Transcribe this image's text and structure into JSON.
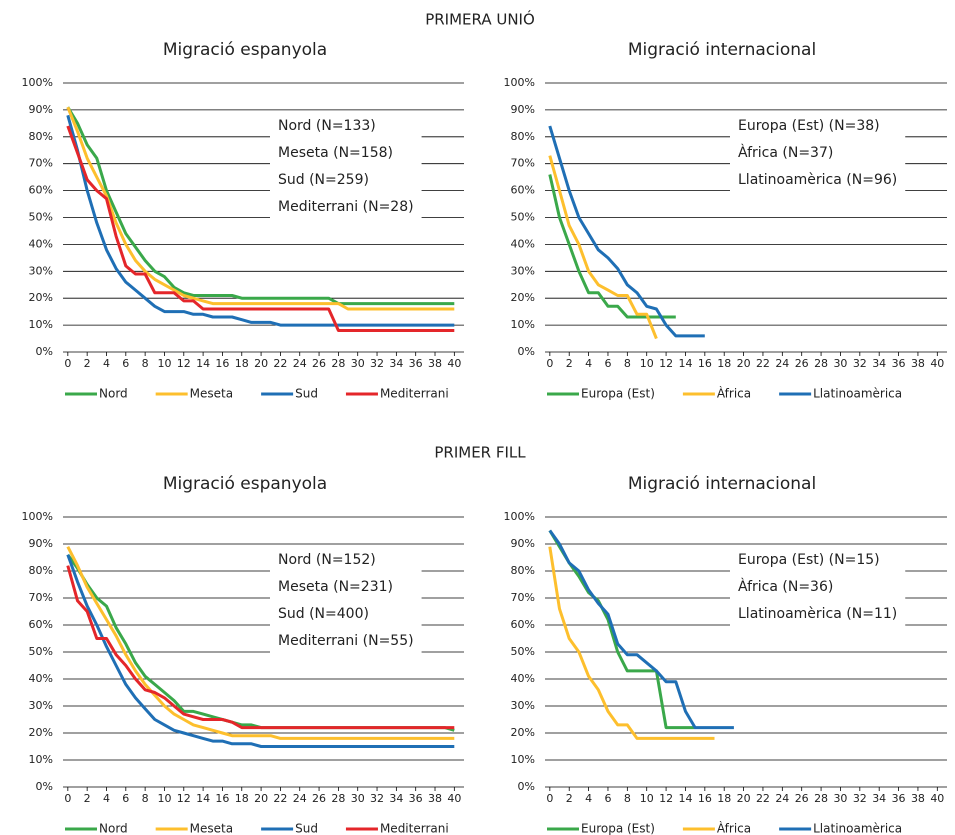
{
  "sections": [
    "PRIMERA UNIÓ",
    "PRIMER FILL"
  ],
  "chart_data": [
    {
      "type": "line",
      "section": 0,
      "title": "Migració espanyola",
      "annotations": [
        "Nord (N=133)",
        "Meseta (N=158)",
        "Sud (N=259)",
        "Mediterrani (N=28)"
      ],
      "x": [
        0,
        1,
        2,
        3,
        4,
        5,
        6,
        7,
        8,
        9,
        10,
        11,
        12,
        13,
        14,
        15,
        16,
        17,
        18,
        19,
        20,
        21,
        22,
        23,
        24,
        25,
        26,
        27,
        28,
        29,
        30,
        31,
        32,
        33,
        34,
        35,
        36,
        37,
        38,
        39,
        40
      ],
      "xlim": [
        -0.5,
        41
      ],
      "xticks": [
        0,
        2,
        4,
        6,
        8,
        10,
        12,
        14,
        16,
        18,
        20,
        22,
        24,
        26,
        28,
        30,
        32,
        34,
        36,
        38,
        40
      ],
      "ylim": [
        0,
        100
      ],
      "yticks": [
        {
          "value": 0,
          "label": "0%"
        },
        {
          "value": 10,
          "label": "10%"
        },
        {
          "value": 20,
          "label": "20%"
        },
        {
          "value": 30,
          "label": "30%"
        },
        {
          "value": 40,
          "label": "40%"
        },
        {
          "value": 50,
          "label": "50%"
        },
        {
          "value": 60,
          "label": "60%"
        },
        {
          "value": 70,
          "label": "70%"
        },
        {
          "value": 80,
          "label": "80%"
        },
        {
          "value": 90,
          "label": "90%"
        },
        {
          "value": 100,
          "label": "100%"
        }
      ],
      "grid": true,
      "series": [
        {
          "name": "Nord",
          "color": "#3aa84a",
          "values": [
            91,
            85,
            77,
            72,
            60,
            52,
            44,
            39,
            34,
            30,
            28,
            24,
            22,
            21,
            21,
            21,
            21,
            21,
            20,
            20,
            20,
            20,
            20,
            20,
            20,
            20,
            20,
            20,
            18,
            18,
            18,
            18,
            18,
            18,
            18,
            18,
            18,
            18,
            18,
            18,
            18
          ]
        },
        {
          "name": "Meseta",
          "color": "#fdbf2d",
          "values": [
            91,
            82,
            72,
            65,
            58,
            48,
            40,
            34,
            30,
            27,
            25,
            23,
            21,
            20,
            19,
            18,
            18,
            18,
            18,
            18,
            18,
            18,
            18,
            18,
            18,
            18,
            18,
            18,
            18,
            16,
            16,
            16,
            16,
            16,
            16,
            16,
            16,
            16,
            16,
            16,
            16
          ]
        },
        {
          "name": "Sud",
          "color": "#1f6fb5",
          "values": [
            88,
            75,
            60,
            48,
            38,
            31,
            26,
            23,
            20,
            17,
            15,
            15,
            15,
            14,
            14,
            13,
            13,
            13,
            12,
            11,
            11,
            11,
            10,
            10,
            10,
            10,
            10,
            10,
            10,
            10,
            10,
            10,
            10,
            10,
            10,
            10,
            10,
            10,
            10,
            10,
            10
          ]
        },
        {
          "name": "Mediterrani",
          "color": "#e4262a",
          "values": [
            84,
            74,
            64,
            60,
            57,
            43,
            32,
            29,
            29,
            22,
            22,
            22,
            19,
            19,
            16,
            16,
            16,
            16,
            16,
            16,
            16,
            16,
            16,
            16,
            16,
            16,
            16,
            16,
            8,
            8,
            8,
            8,
            8,
            8,
            8,
            8,
            8,
            8,
            8,
            8,
            8
          ]
        }
      ]
    },
    {
      "type": "line",
      "section": 0,
      "title": "Migració internacional",
      "annotations": [
        "Europa (Est) (N=38)",
        "Àfrica (N=37)",
        "Llatinoamèrica (N=96)"
      ],
      "x": [
        0,
        1,
        2,
        3,
        4,
        5,
        6,
        7,
        8,
        9,
        10,
        11,
        12,
        13,
        14,
        15,
        16,
        17,
        18,
        19,
        20,
        21,
        22,
        23,
        24,
        25,
        26,
        27,
        28,
        29,
        30,
        31,
        32,
        33,
        34,
        35,
        36,
        37,
        38,
        39,
        40
      ],
      "xlim": [
        -0.5,
        41
      ],
      "xticks": [
        0,
        2,
        4,
        6,
        8,
        10,
        12,
        14,
        16,
        18,
        20,
        22,
        24,
        26,
        28,
        30,
        32,
        34,
        36,
        38,
        40
      ],
      "ylim": [
        0,
        100
      ],
      "yticks": [
        {
          "value": 0,
          "label": "0%"
        },
        {
          "value": 10,
          "label": "10%"
        },
        {
          "value": 20,
          "label": "20%"
        },
        {
          "value": 30,
          "label": "30%"
        },
        {
          "value": 40,
          "label": "40%"
        },
        {
          "value": 50,
          "label": "50%"
        },
        {
          "value": 60,
          "label": "60%"
        },
        {
          "value": 70,
          "label": "70%"
        },
        {
          "value": 80,
          "label": "80%"
        },
        {
          "value": 90,
          "label": "90%"
        },
        {
          "value": 100,
          "label": "100%"
        }
      ],
      "grid": true,
      "series": [
        {
          "name": "Europa (Est)",
          "color": "#3aa84a",
          "values": [
            66,
            50,
            40,
            30,
            22,
            22,
            17,
            17,
            13,
            13,
            13,
            13,
            13,
            13,
            null,
            null,
            null,
            null,
            null,
            null,
            null,
            null,
            null,
            null,
            null,
            null,
            null,
            null,
            null,
            null,
            null,
            null,
            null,
            null,
            null,
            null,
            null,
            null,
            null,
            null,
            null
          ]
        },
        {
          "name": "Àfrica",
          "color": "#fdbf2d",
          "values": [
            73,
            60,
            47,
            40,
            30,
            25,
            23,
            21,
            21,
            14,
            14,
            5,
            null,
            null,
            null,
            null,
            null,
            null,
            null,
            null,
            null,
            null,
            null,
            null,
            null,
            null,
            null,
            null,
            null,
            null,
            null,
            null,
            null,
            null,
            null,
            null,
            null,
            null,
            null,
            null,
            null
          ]
        },
        {
          "name": "Llatinoamèrica",
          "color": "#1f6fb5",
          "values": [
            84,
            72,
            60,
            50,
            44,
            38,
            35,
            31,
            25,
            22,
            17,
            16,
            10,
            6,
            6,
            6,
            6,
            null,
            null,
            null,
            null,
            null,
            null,
            null,
            null,
            null,
            null,
            null,
            null,
            null,
            null,
            null,
            null,
            null,
            null,
            null,
            null,
            null,
            null,
            null,
            null
          ]
        }
      ]
    },
    {
      "type": "line",
      "section": 1,
      "title": "Migració espanyola",
      "annotations": [
        "Nord (N=152)",
        "Meseta (N=231)",
        "Sud (N=400)",
        "Mediterrani (N=55)"
      ],
      "x": [
        0,
        1,
        2,
        3,
        4,
        5,
        6,
        7,
        8,
        9,
        10,
        11,
        12,
        13,
        14,
        15,
        16,
        17,
        18,
        19,
        20,
        21,
        22,
        23,
        24,
        25,
        26,
        27,
        28,
        29,
        30,
        31,
        32,
        33,
        34,
        35,
        36,
        37,
        38,
        39,
        40
      ],
      "xlim": [
        -0.5,
        41
      ],
      "xticks": [
        0,
        2,
        4,
        6,
        8,
        10,
        12,
        14,
        16,
        18,
        20,
        22,
        24,
        26,
        28,
        30,
        32,
        34,
        36,
        38,
        40
      ],
      "ylim": [
        0,
        100
      ],
      "yticks": [
        {
          "value": 0,
          "label": "0%"
        },
        {
          "value": 10,
          "label": "10%"
        },
        {
          "value": 20,
          "label": "20%"
        },
        {
          "value": 30,
          "label": "30%"
        },
        {
          "value": 40,
          "label": "40%"
        },
        {
          "value": 50,
          "label": "50%"
        },
        {
          "value": 60,
          "label": "60%"
        },
        {
          "value": 70,
          "label": "70%"
        },
        {
          "value": 80,
          "label": "80%"
        },
        {
          "value": 90,
          "label": "90%"
        },
        {
          "value": 100,
          "label": "100%"
        }
      ],
      "grid": true,
      "series": [
        {
          "name": "Nord",
          "color": "#3aa84a",
          "values": [
            86,
            81,
            75,
            70,
            67,
            59,
            53,
            46,
            41,
            38,
            35,
            32,
            28,
            28,
            27,
            26,
            25,
            24,
            23,
            23,
            22,
            22,
            22,
            22,
            22,
            22,
            22,
            22,
            22,
            22,
            22,
            22,
            22,
            22,
            22,
            22,
            22,
            22,
            22,
            22,
            21
          ]
        },
        {
          "name": "Meseta",
          "color": "#fdbf2d",
          "values": [
            89,
            82,
            74,
            68,
            62,
            56,
            49,
            43,
            38,
            34,
            30,
            27,
            25,
            23,
            22,
            21,
            20,
            19,
            19,
            19,
            19,
            19,
            18,
            18,
            18,
            18,
            18,
            18,
            18,
            18,
            18,
            18,
            18,
            18,
            18,
            18,
            18,
            18,
            18,
            18,
            18
          ]
        },
        {
          "name": "Sud",
          "color": "#1f6fb5",
          "values": [
            86,
            76,
            67,
            60,
            52,
            45,
            38,
            33,
            29,
            25,
            23,
            21,
            20,
            19,
            18,
            17,
            17,
            16,
            16,
            16,
            15,
            15,
            15,
            15,
            15,
            15,
            15,
            15,
            15,
            15,
            15,
            15,
            15,
            15,
            15,
            15,
            15,
            15,
            15,
            15,
            15
          ]
        },
        {
          "name": "Mediterrani",
          "color": "#e4262a",
          "values": [
            82,
            69,
            65,
            55,
            55,
            49,
            45,
            40,
            36,
            35,
            33,
            30,
            27,
            26,
            25,
            25,
            25,
            24,
            22,
            22,
            22,
            22,
            22,
            22,
            22,
            22,
            22,
            22,
            22,
            22,
            22,
            22,
            22,
            22,
            22,
            22,
            22,
            22,
            22,
            22,
            22
          ]
        }
      ]
    },
    {
      "type": "line",
      "section": 1,
      "title": "Migració internacional",
      "annotations": [
        "Europa (Est) (N=15)",
        "Àfrica (N=36)",
        "Llatinoamèrica (N=11)"
      ],
      "x": [
        0,
        1,
        2,
        3,
        4,
        5,
        6,
        7,
        8,
        9,
        10,
        11,
        12,
        13,
        14,
        15,
        16,
        17,
        18,
        19,
        20,
        21,
        22,
        23,
        24,
        25,
        26,
        27,
        28,
        29,
        30,
        31,
        32,
        33,
        34,
        35,
        36,
        37,
        38,
        39,
        40
      ],
      "xlim": [
        -0.5,
        41
      ],
      "xticks": [
        0,
        2,
        4,
        6,
        8,
        10,
        12,
        14,
        16,
        18,
        20,
        22,
        24,
        26,
        28,
        30,
        32,
        34,
        36,
        38,
        40
      ],
      "ylim": [
        0,
        100
      ],
      "yticks": [
        {
          "value": 0,
          "label": "0%"
        },
        {
          "value": 10,
          "label": "10%"
        },
        {
          "value": 20,
          "label": "20%"
        },
        {
          "value": 30,
          "label": "30%"
        },
        {
          "value": 40,
          "label": "40%"
        },
        {
          "value": 50,
          "label": "50%"
        },
        {
          "value": 60,
          "label": "60%"
        },
        {
          "value": 70,
          "label": "70%"
        },
        {
          "value": 80,
          "label": "80%"
        },
        {
          "value": 90,
          "label": "90%"
        },
        {
          "value": 100,
          "label": "100%"
        }
      ],
      "grid": true,
      "series": [
        {
          "name": "Europa (Est)",
          "color": "#3aa84a",
          "values": [
            95,
            89,
            83,
            78,
            72,
            69,
            62,
            50,
            43,
            43,
            43,
            43,
            22,
            22,
            22,
            22,
            null,
            null,
            null,
            null,
            null,
            null,
            null,
            null,
            null,
            null,
            null,
            null,
            null,
            null,
            null,
            null,
            null,
            null,
            null,
            null,
            null,
            null,
            null,
            null,
            null
          ]
        },
        {
          "name": "Àfrica",
          "color": "#fdbf2d",
          "values": [
            89,
            66,
            55,
            50,
            41,
            36,
            28,
            23,
            23,
            18,
            18,
            18,
            18,
            18,
            18,
            18,
            18,
            18,
            null,
            null,
            null,
            null,
            null,
            null,
            null,
            null,
            null,
            null,
            null,
            null,
            null,
            null,
            null,
            null,
            null,
            null,
            null,
            null,
            null,
            null,
            null
          ]
        },
        {
          "name": "Llatinoamèrica",
          "color": "#1f6fb5",
          "values": [
            95,
            90,
            83,
            80,
            73,
            68,
            64,
            53,
            49,
            49,
            46,
            43,
            39,
            39,
            28,
            22,
            22,
            22,
            22,
            22,
            null,
            null,
            null,
            null,
            null,
            null,
            null,
            null,
            null,
            null,
            null,
            null,
            null,
            null,
            null,
            null,
            null,
            null,
            null,
            null,
            null
          ]
        }
      ]
    }
  ]
}
